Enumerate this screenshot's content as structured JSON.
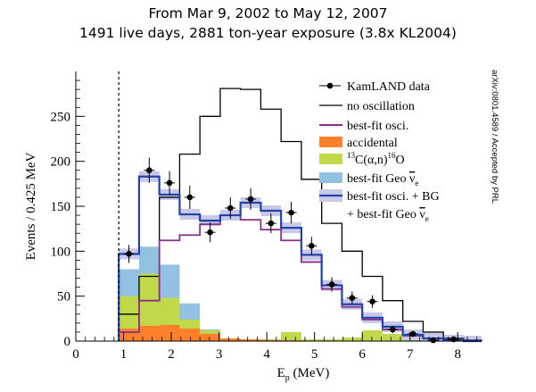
{
  "header": {
    "title_line1": "From Mar 9, 2002 to May 12, 2007",
    "title_line2": "1491 live days, 2881 ton-year exposure (3.8x KL2004)"
  },
  "side_note": "arXiv:0801.4589 / Accepted by PRL",
  "colors": {
    "no_osc": "#000000",
    "bestfit": "#8a2e8a",
    "accidental": "#ff7f2a",
    "c13": "#c0d84a",
    "geo": "#93c1e1",
    "total": "#2244aa",
    "band": "#c8c8e8",
    "data": "#000000",
    "threshold": "#000000"
  },
  "chart_data": {
    "type": "histogram",
    "xlabel_main": "E",
    "xlabel_sub": "p",
    "xlabel_unit": "(MeV)",
    "ylabel": "Events / 0.425 MeV",
    "xlim": [
      0,
      8.5
    ],
    "ylim": [
      0,
      300
    ],
    "xticks": [
      0,
      1,
      2,
      3,
      4,
      5,
      6,
      7,
      8
    ],
    "yticks": [
      0,
      50,
      100,
      150,
      200,
      250
    ],
    "threshold_mev": 0.9,
    "bin_edges": [
      0.9,
      1.325,
      1.75,
      2.175,
      2.6,
      3.025,
      3.45,
      3.875,
      4.3,
      4.725,
      5.15,
      5.575,
      6.0,
      6.425,
      6.85,
      7.275,
      7.7,
      8.125,
      8.5
    ],
    "series": [
      {
        "name": "no oscillation",
        "key": "no_osc",
        "values": [
          30,
          72,
          160,
          208,
          250,
          281,
          280,
          258,
          222,
          180,
          131,
          100,
          72,
          45,
          22,
          10,
          3,
          1
        ]
      },
      {
        "name": "best-fit osci.",
        "key": "bestfit",
        "values": [
          10,
          45,
          112,
          118,
          130,
          140,
          135,
          124,
          112,
          88,
          58,
          38,
          24,
          13,
          6,
          3,
          1,
          0
        ]
      },
      {
        "name": "accidental",
        "key": "accidental",
        "values": [
          14,
          17,
          18,
          14,
          8,
          3,
          2,
          1,
          1,
          0,
          0,
          0,
          0,
          0,
          0,
          0,
          0,
          0
        ]
      },
      {
        "name": "13C(α,n)16O",
        "key": "c13",
        "values": [
          50,
          75,
          48,
          24,
          12,
          2,
          2,
          2,
          10,
          2,
          2,
          4,
          12,
          8,
          2,
          1,
          0,
          0
        ]
      },
      {
        "name": "best-fit Geo ν̄e",
        "key": "geo",
        "values": [
          80,
          105,
          85,
          42,
          13,
          3,
          2,
          2,
          10,
          2,
          2,
          4,
          12,
          8,
          2,
          1,
          0,
          0
        ]
      },
      {
        "name": "best-fit osci. + BG + best-fit Geo ν̄e",
        "key": "total",
        "values": [
          97,
          183,
          163,
          141,
          134,
          140,
          154,
          145,
          126,
          96,
          62,
          41,
          26,
          16,
          7,
          3,
          1,
          0
        ],
        "band": 6
      }
    ],
    "data_points": {
      "name": "KamLAND data",
      "x": [
        1.113,
        1.538,
        1.963,
        2.388,
        2.813,
        3.238,
        3.663,
        4.088,
        4.513,
        4.938,
        5.363,
        5.788,
        6.213,
        6.638,
        7.063,
        7.488,
        7.913
      ],
      "y": [
        97,
        190,
        176,
        160,
        121,
        148,
        158,
        131,
        143,
        106,
        63,
        48,
        44,
        13,
        8,
        1,
        2
      ],
      "err": [
        10,
        14,
        13,
        13,
        11,
        12,
        12,
        11,
        12,
        10,
        8,
        7,
        7,
        4,
        3,
        1,
        1.5
      ]
    },
    "legend": {
      "position": "top-right",
      "entries": [
        {
          "label": "KamLAND data"
        },
        {
          "label": "no oscillation"
        },
        {
          "label": "best-fit osci."
        },
        {
          "label": "accidental"
        },
        {
          "label": "13C(α,n)16O",
          "sup1": "13",
          "main": "C(α,n)",
          "sup2": "16",
          "tail": "O"
        },
        {
          "label": "best-fit Geo ν̄e",
          "text": "best-fit Geo ",
          "nu": "ν",
          "sub": "e"
        },
        {
          "label": "best-fit osci. + BG"
        },
        {
          "label": "+ best-fit Geo ν̄e",
          "text": "+ best-fit Geo ",
          "nu": "ν",
          "sub": "e"
        }
      ]
    }
  }
}
